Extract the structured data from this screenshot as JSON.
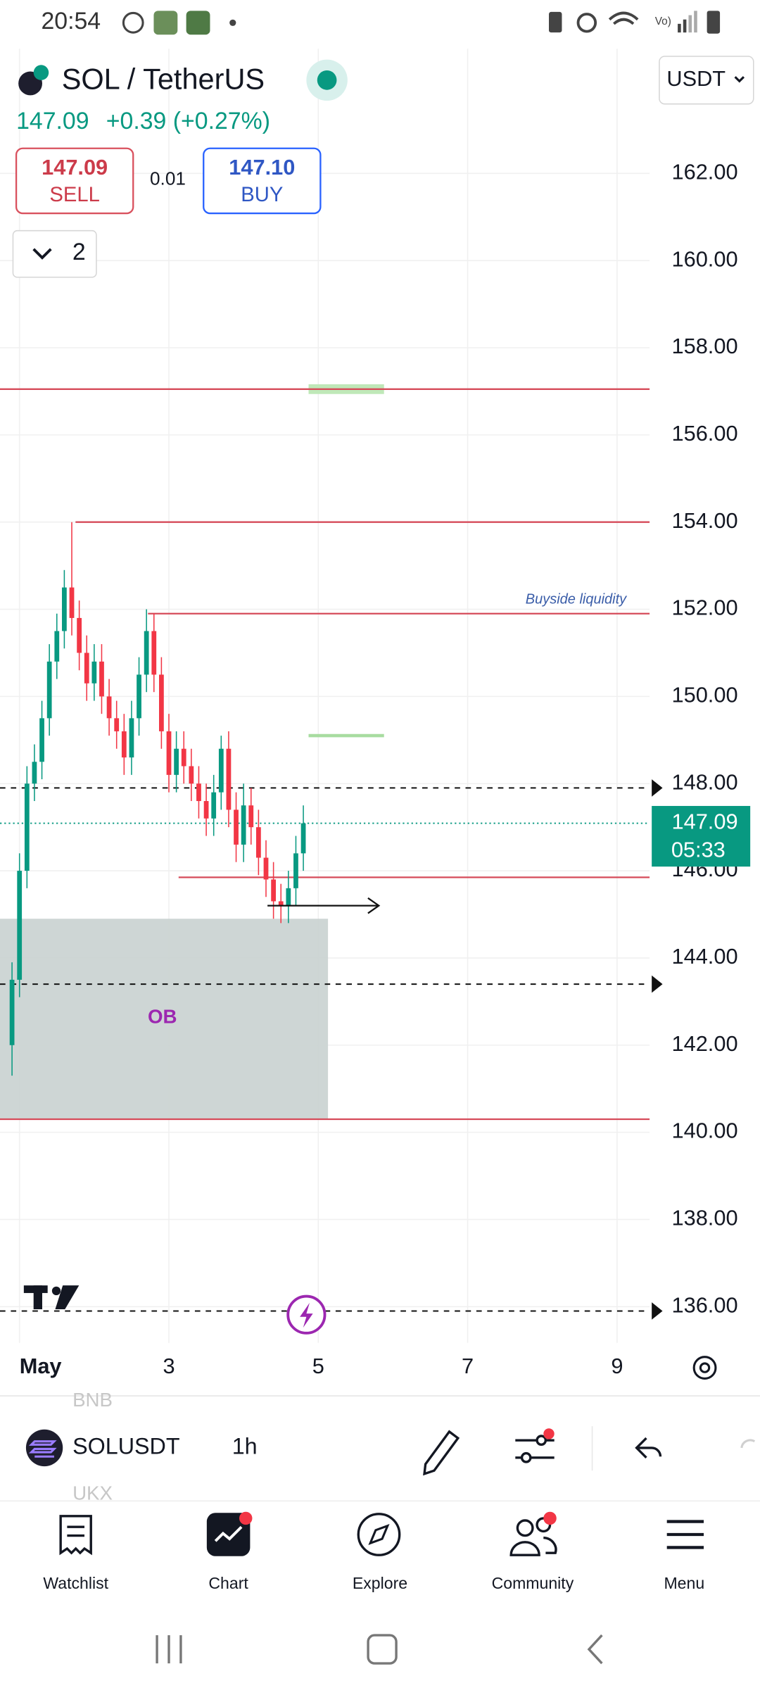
{
  "status_bar": {
    "time": "20:54"
  },
  "header": {
    "symbol": "SOL / TetherUS",
    "currency": "USDT",
    "price": "147.09",
    "change": "+0.39 (+0.27%)",
    "sell_price": "147.09",
    "sell_label": "SELL",
    "spread": "0.01",
    "buy_price": "147.10",
    "buy_label": "BUY",
    "indicator_count": "2"
  },
  "chart_data": {
    "type": "candlestick",
    "x": [
      0.9,
      1.0,
      1.1,
      1.2,
      1.3,
      1.4,
      1.5,
      1.6,
      1.7,
      1.8,
      1.9,
      2.0,
      2.1,
      2.2,
      2.3,
      2.4,
      2.5,
      2.6,
      2.7,
      2.8,
      2.9,
      3.0,
      3.1,
      3.2,
      3.3,
      3.4,
      3.5,
      3.6,
      3.7,
      3.8,
      3.9,
      4.0,
      4.1,
      4.2,
      4.3,
      4.4,
      4.5,
      4.6,
      4.7,
      4.8
    ],
    "open": [
      142,
      143.5,
      146,
      148,
      148.5,
      149.5,
      150.8,
      151.5,
      152.5,
      151.8,
      151,
      150.3,
      150.8,
      150,
      149.5,
      149.2,
      148.6,
      149.5,
      150.5,
      151.5,
      150.5,
      149.2,
      148.2,
      148.8,
      148.4,
      148,
      147.6,
      147.2,
      147.8,
      148.8,
      147.4,
      146.6,
      147.5,
      147,
      146.3,
      145.8,
      145.3,
      145.2,
      145.6,
      146.4
    ],
    "high": [
      143.9,
      146.4,
      148.4,
      148.9,
      149.9,
      151.2,
      151.9,
      152.9,
      154,
      152.2,
      151.4,
      151.2,
      151.2,
      150.4,
      149.9,
      149.6,
      149.9,
      150.9,
      152,
      151.9,
      150.9,
      149.6,
      149.2,
      149.2,
      148.8,
      148.4,
      148,
      148.2,
      149.1,
      149.2,
      147.8,
      148,
      147.9,
      147.4,
      146.7,
      146.2,
      145.7,
      146,
      146.8,
      147.5
    ],
    "low": [
      141.3,
      143.1,
      145.6,
      147.6,
      148.1,
      149.1,
      150.4,
      151.1,
      151.4,
      150.6,
      149.9,
      149.9,
      149.6,
      149.1,
      148.8,
      148.2,
      148.2,
      149.1,
      150.1,
      150.1,
      148.8,
      147.8,
      147.8,
      148,
      147.6,
      147.2,
      146.8,
      146.8,
      147.4,
      147,
      146.2,
      146.2,
      146.6,
      145.9,
      145.4,
      144.9,
      144.8,
      144.8,
      145.2,
      146
    ],
    "close": [
      143.5,
      146,
      148,
      148.5,
      149.5,
      150.8,
      151.5,
      152.5,
      151.8,
      151,
      150.3,
      150.8,
      150,
      149.5,
      149.2,
      148.6,
      149.5,
      150.5,
      151.5,
      150.5,
      149.2,
      148.2,
      148.8,
      148.4,
      148,
      147.6,
      147.2,
      147.8,
      148.8,
      147.4,
      146.6,
      147.5,
      147,
      146.3,
      145.8,
      145.3,
      145.2,
      145.6,
      146.4,
      147.09
    ],
    "up_color": "#089981",
    "down_color": "#f23645",
    "xlim": [
      0.739,
      9.435
    ],
    "ylim": [
      135.17,
      164.86
    ],
    "xticks": [
      {
        "value": 1,
        "label": "May"
      },
      3,
      5,
      7,
      9
    ],
    "yticks": [
      {
        "value": 136,
        "label": "136.00"
      },
      {
        "value": 138,
        "label": "138.00"
      },
      {
        "value": 140,
        "label": "140.00"
      },
      {
        "value": 142,
        "label": "142.00"
      },
      {
        "value": 144,
        "label": "144.00"
      },
      {
        "value": 146,
        "label": "146.00"
      },
      {
        "value": 148,
        "label": "148.00"
      },
      {
        "value": 150,
        "label": "150.00"
      },
      {
        "value": 152,
        "label": "152.00"
      },
      {
        "value": 154,
        "label": "154.00"
      },
      {
        "value": 156,
        "label": "156.00"
      },
      {
        "value": 158,
        "label": "158.00"
      },
      {
        "value": 160,
        "label": "160.00"
      },
      {
        "value": 162,
        "label": "162.00"
      }
    ],
    "grid": true,
    "levels": [
      {
        "value": 157.05,
        "from": 0.739,
        "style": "solid",
        "color": "#d64b5a"
      },
      {
        "value": 154.0,
        "from": 1.75,
        "style": "solid",
        "color": "#d64b5a"
      },
      {
        "value": 151.9,
        "from": 2.72,
        "style": "solid",
        "color": "#d64b5a"
      },
      {
        "value": 145.85,
        "from": 3.13,
        "style": "solid",
        "color": "#d64b5a"
      },
      {
        "value": 140.3,
        "from": 0.739,
        "style": "solid",
        "color": "#d64b5a"
      },
      {
        "value": 147.9,
        "from": 0.739,
        "style": "dashed",
        "color": "#111111"
      },
      {
        "value": 143.4,
        "from": 0.739,
        "style": "dashed",
        "color": "#111111"
      },
      {
        "value": 135.9,
        "from": 0.739,
        "style": "dashed",
        "color": "#111111"
      }
    ],
    "highlights": [
      {
        "value": 157.05,
        "from": 4.87,
        "to": 5.88,
        "style": "band",
        "color": "#bfe8b8"
      },
      {
        "value": 149.1,
        "from": 4.87,
        "to": 5.88,
        "style": "line",
        "color": "#a8dca0"
      }
    ],
    "zone": {
      "x": [
        0.739,
        5.13
      ],
      "y": [
        140.3,
        144.9
      ],
      "color": "#c9d1d0"
    },
    "arrow": {
      "value": 145.2,
      "x": [
        4.32,
        5.81
      ]
    },
    "annotations": [
      "Buyside liquidity",
      "OB"
    ],
    "price_label": {
      "value": 147.09,
      "label": "147.09",
      "countdown": "05:33",
      "color": "#089981"
    }
  },
  "toolbar": {
    "ticker": "SOLUSDT",
    "interval": "1h",
    "above": "BNB",
    "below": "UKX"
  },
  "nav": [
    "Watchlist",
    "Chart",
    "Explore",
    "Community",
    "Menu"
  ]
}
